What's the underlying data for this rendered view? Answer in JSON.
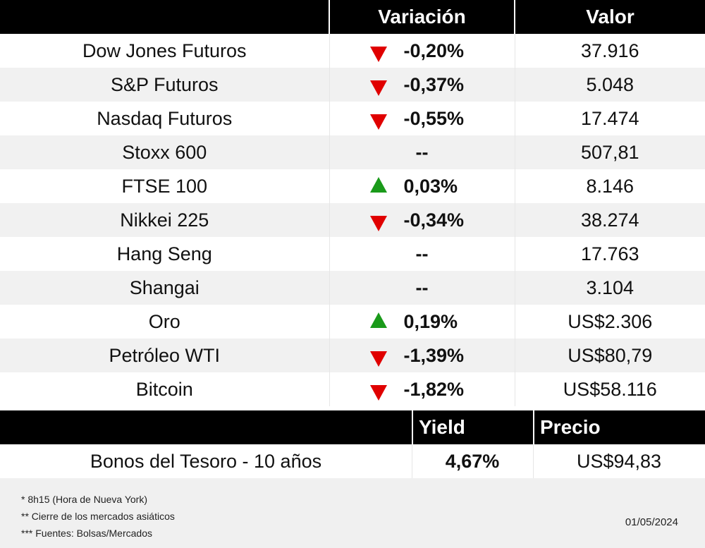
{
  "headers": {
    "variation": "Variación",
    "value": "Valor"
  },
  "rows": [
    {
      "name": "Dow Jones Futuros",
      "dir": "down",
      "variation": "-0,20%",
      "value": "37.916"
    },
    {
      "name": "S&P Futuros",
      "dir": "down",
      "variation": "-0,37%",
      "value": "5.048"
    },
    {
      "name": "Nasdaq Futuros",
      "dir": "down",
      "variation": "-0,55%",
      "value": "17.474"
    },
    {
      "name": "Stoxx 600",
      "dir": "none",
      "variation": "--",
      "value": "507,81"
    },
    {
      "name": "FTSE 100",
      "dir": "up",
      "variation": "0,03%",
      "value": "8.146"
    },
    {
      "name": "Nikkei 225",
      "dir": "down",
      "variation": "-0,34%",
      "value": "38.274"
    },
    {
      "name": "Hang Seng",
      "dir": "none",
      "variation": "--",
      "value": "17.763"
    },
    {
      "name": "Shangai",
      "dir": "none",
      "variation": "--",
      "value": "3.104"
    },
    {
      "name": "Oro",
      "dir": "up",
      "variation": "0,19%",
      "value": "US$2.306"
    },
    {
      "name": "Petróleo WTI",
      "dir": "down",
      "variation": "-1,39%",
      "value": "US$80,79"
    },
    {
      "name": "Bitcoin",
      "dir": "down",
      "variation": "-1,82%",
      "value": "US$58.116"
    }
  ],
  "bond": {
    "header_yield": "Yield",
    "header_price": "Precio",
    "name": "Bonos del Tesoro - 10 años",
    "yield": "4,67%",
    "price": "US$94,83"
  },
  "footer": {
    "note1": "* 8h15 (Hora de Nueva York)",
    "note2": "** Cierre de los mercados asiáticos",
    "note3": "*** Fuentes: Bolsas/Mercados",
    "date": "01/05/2024"
  },
  "colors": {
    "down": "#e00000",
    "up": "#1a9a1a",
    "header_bg": "#000000",
    "alt_row": "#f1f1f1"
  }
}
